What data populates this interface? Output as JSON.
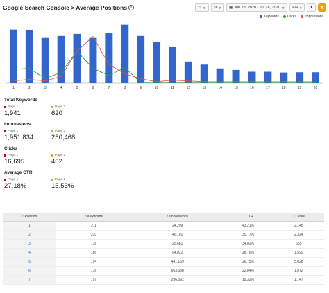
{
  "header": {
    "title": "Google Search Console > Average Positions",
    "date_range": "Jun 28, 2020 - Jul 28, 2020",
    "language": "EN"
  },
  "legend": [
    {
      "label": "Keywords",
      "color": "#3366cc"
    },
    {
      "label": "Clicks",
      "color": "#2a9d3f"
    },
    {
      "label": "Impressions",
      "color": "#e0524a"
    }
  ],
  "chart_data": {
    "type": "bar",
    "categories": [
      "1",
      "2",
      "3",
      "4",
      "5",
      "6",
      "7",
      "8",
      "9",
      "10",
      "11",
      "12",
      "13",
      "14",
      "15",
      "16",
      "17",
      "18",
      "19",
      "20"
    ],
    "series": [
      {
        "name": "Keywords",
        "type": "bar",
        "color": "#3366cc",
        "values": [
          211,
          210,
          178,
          186,
          194,
          178,
          197,
          230,
          186,
          163,
          142,
          85,
          73,
          58,
          52,
          45,
          45,
          42,
          43,
          43
        ]
      },
      {
        "name": "Clicks",
        "type": "line",
        "color": "#2a9d3f",
        "values": [
          0.17,
          0.18,
          0.05,
          0.13,
          0.4,
          0.18,
          0.09,
          0.19,
          0.0,
          0.0,
          0.0,
          0.0,
          0.0,
          0.0,
          0.0,
          0.0,
          0.0,
          0.0,
          0.0,
          0.0
        ]
      },
      {
        "name": "Impressions",
        "type": "line",
        "color": "#e0524a",
        "values": [
          0.02,
          0.04,
          0.02,
          0.08,
          0.4,
          0.59,
          0.23,
          0.11,
          0.05,
          0.01,
          0.03,
          0.02,
          0.01,
          0.01,
          0.01,
          0.01,
          0.01,
          0.01,
          0.01,
          0.01
        ]
      }
    ]
  },
  "stats": [
    {
      "title": "Total Keywords",
      "page1_label": "Page 1",
      "page1_value": "1,941",
      "page2_label": "Page 2",
      "page2_value": "620"
    },
    {
      "title": "Impressions",
      "page1_label": "Page 1",
      "page1_value": "1,951,834",
      "page2_label": "Page 2",
      "page2_value": "250,468"
    },
    {
      "title": "Clicks",
      "page1_label": "Page 1",
      "page1_value": "16,695",
      "page2_label": "Page 2",
      "page2_value": "462"
    },
    {
      "title": "Average CTR",
      "page1_label": "Page 1",
      "page1_value": "27.18%",
      "page2_label": "Page 2",
      "page2_value": "15.53%"
    }
  ],
  "stat_colors": {
    "page1": "#cc0000",
    "page2": "#f39c12"
  },
  "table": {
    "headers": [
      "Position",
      "Keywords",
      "Impressions",
      "CTR",
      "Clicks"
    ],
    "rows": [
      [
        "1",
        "211",
        "24,209",
        "43.21%",
        "2,145"
      ],
      [
        "2",
        "210",
        "46,101",
        "30.77%",
        "2,324"
      ],
      [
        "3",
        "178",
        "25,681",
        "34.02%",
        "655"
      ],
      [
        "4",
        "186",
        "94,022",
        "28.76%",
        "1,590"
      ],
      [
        "5",
        "194",
        "441,169",
        "26.75%",
        "5,028"
      ],
      [
        "6",
        "178",
        "663,638",
        "22.84%",
        "1,872"
      ],
      [
        "7",
        "197",
        "296,592",
        "19.32%",
        "1,147"
      ]
    ]
  }
}
